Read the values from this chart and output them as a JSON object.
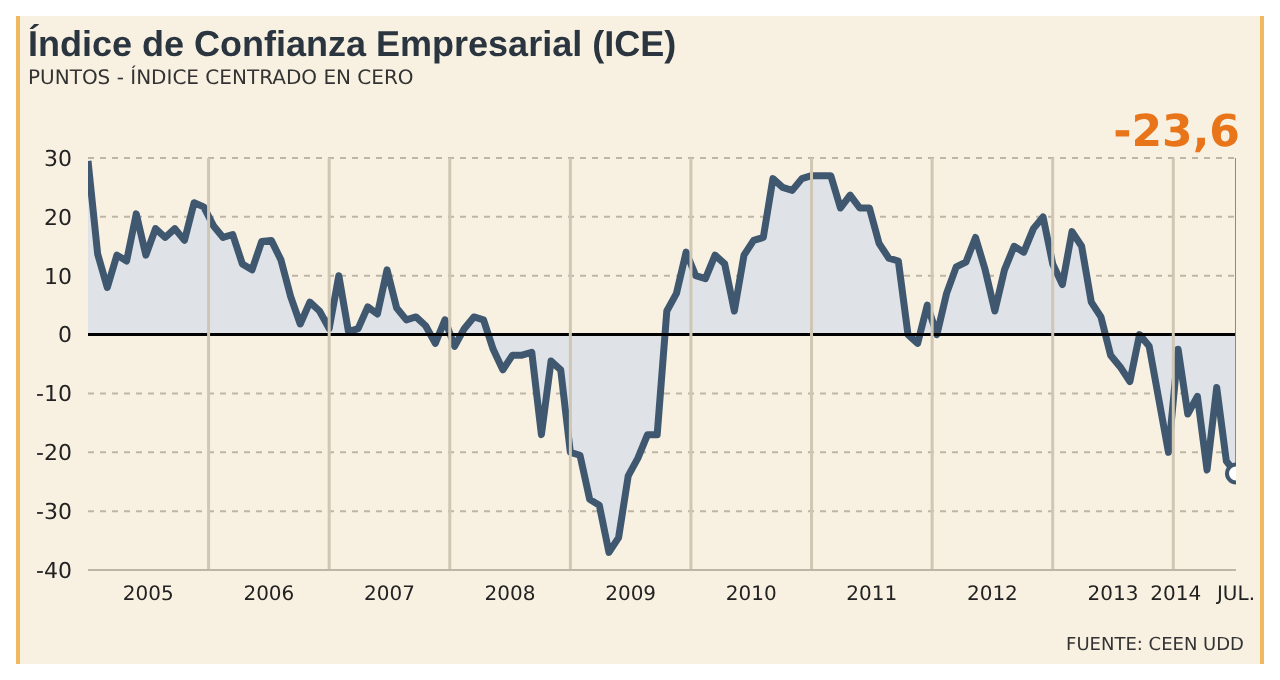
{
  "chart_data": {
    "type": "area",
    "title": "Índice de Confianza Empresarial (ICE)",
    "subtitle": "PUNTOS - ÍNDICE CENTRADO EN CERO",
    "x": [
      2005,
      2005.08,
      2005.16,
      2005.24,
      2005.32,
      2005.4,
      2005.48,
      2005.56,
      2005.64,
      2005.72,
      2005.8,
      2005.88,
      2005.96,
      2006.04,
      2006.12,
      2006.2,
      2006.28,
      2006.36,
      2006.44,
      2006.52,
      2006.6,
      2006.68,
      2006.76,
      2006.84,
      2006.92,
      2007,
      2007.08,
      2007.16,
      2007.24,
      2007.32,
      2007.4,
      2007.48,
      2007.56,
      2007.64,
      2007.72,
      2007.8,
      2007.88,
      2007.96,
      2008.04,
      2008.12,
      2008.2,
      2008.28,
      2008.36,
      2008.44,
      2008.52,
      2008.6,
      2008.68,
      2008.76,
      2008.84,
      2008.92,
      2009,
      2009.08,
      2009.16,
      2009.24,
      2009.32,
      2009.4,
      2009.48,
      2009.56,
      2009.64,
      2009.72,
      2009.8,
      2009.88,
      2009.96,
      2010.04,
      2010.12,
      2010.2,
      2010.28,
      2010.36,
      2010.44,
      2010.52,
      2010.6,
      2010.68,
      2010.76,
      2010.84,
      2010.92,
      2011,
      2011.08,
      2011.16,
      2011.24,
      2011.32,
      2011.4,
      2011.48,
      2011.56,
      2011.64,
      2011.72,
      2011.8,
      2011.88,
      2011.96,
      2012.04,
      2012.12,
      2012.2,
      2012.28,
      2012.36,
      2012.44,
      2012.52,
      2012.6,
      2012.68,
      2012.76,
      2012.84,
      2012.92,
      2013,
      2013.08,
      2013.16,
      2013.24,
      2013.32,
      2013.4,
      2013.48,
      2013.56,
      2013.64,
      2013.72,
      2013.8,
      2013.88,
      2013.96,
      2014.04,
      2014.12,
      2014.2,
      2014.28,
      2014.36,
      2014.44,
      2014.52
    ],
    "series": [
      {
        "color": "#3f5870",
        "values": [
          29.5,
          13.7,
          8,
          13.5,
          12.5,
          20.5,
          13.5,
          18,
          16.5,
          18,
          16,
          22.4,
          21.7,
          18.5,
          16.5,
          17,
          12,
          11,
          15.8,
          16,
          12.7,
          6.5,
          1.8,
          5.5,
          4,
          1,
          10,
          0.5,
          1,
          4.7,
          3.5,
          11,
          4.5,
          2.5,
          3,
          1.5,
          -1.5,
          2.5,
          -2,
          1,
          3,
          2.5,
          -2.5,
          -6,
          -3.5,
          -3.5,
          -3,
          -17,
          -4.5,
          -6,
          -20,
          -20.5,
          -28,
          -29,
          -37,
          -34.5,
          -24,
          -21,
          -17,
          -17,
          4,
          7,
          14,
          10,
          9.5,
          13.5,
          12,
          4,
          13.5,
          16,
          16.5,
          26.5,
          25,
          24.5,
          26.5,
          27,
          27,
          27,
          21.5,
          23.7,
          21.5,
          21.5,
          15.5,
          13,
          12.5,
          0,
          -1.5,
          5,
          0,
          7,
          11.5,
          12.3,
          16.5,
          11,
          4,
          11,
          15,
          14,
          18,
          20,
          12,
          8.5,
          17.5,
          15,
          5.5,
          3,
          -3.5,
          -5.5,
          -8,
          0,
          -2,
          -11,
          -20,
          -2.5,
          -13.5,
          -10.5,
          -23,
          -9,
          -21.5,
          -23.6
        ]
      }
    ],
    "xlim": [
      2005,
      2014.52
    ],
    "xticks": [
      {
        "value": 2005.5,
        "label": "2005"
      },
      {
        "value": 2006.5,
        "label": "2006"
      },
      {
        "value": 2007.5,
        "label": "2007"
      },
      {
        "value": 2008.5,
        "label": "2008"
      },
      {
        "value": 2009.5,
        "label": "2009"
      },
      {
        "value": 2010.5,
        "label": "2010"
      },
      {
        "value": 2011.5,
        "label": "2011"
      },
      {
        "value": 2012.5,
        "label": "2012"
      },
      {
        "value": 2013.5,
        "label": "2013"
      },
      {
        "value": 2014.02,
        "label": "2014"
      },
      {
        "value": 2014.52,
        "label": "JUL."
      }
    ],
    "ylim": [
      -40,
      30
    ],
    "yticks": [
      -40,
      -30,
      -20,
      -10,
      0,
      10,
      20,
      30
    ],
    "grid": "y",
    "marker": "none",
    "ref_lines": [
      {
        "axis": "y",
        "value": 0,
        "color": "#000000"
      },
      {
        "axis": "x",
        "value": 2006,
        "color": "#cfc6b4"
      },
      {
        "axis": "x",
        "value": 2007,
        "color": "#cfc6b4"
      },
      {
        "axis": "x",
        "value": 2008,
        "color": "#cfc6b4"
      },
      {
        "axis": "x",
        "value": 2009,
        "color": "#cfc6b4"
      },
      {
        "axis": "x",
        "value": 2010,
        "color": "#cfc6b4"
      },
      {
        "axis": "x",
        "value": 2011,
        "color": "#cfc6b4"
      },
      {
        "axis": "x",
        "value": 2012,
        "color": "#cfc6b4"
      },
      {
        "axis": "x",
        "value": 2013,
        "color": "#cfc6b4"
      },
      {
        "axis": "x",
        "value": 2014,
        "color": "#cfc6b4"
      }
    ],
    "annotations": [
      "-23,6",
      "FUENTE: CEEN UDD"
    ]
  }
}
